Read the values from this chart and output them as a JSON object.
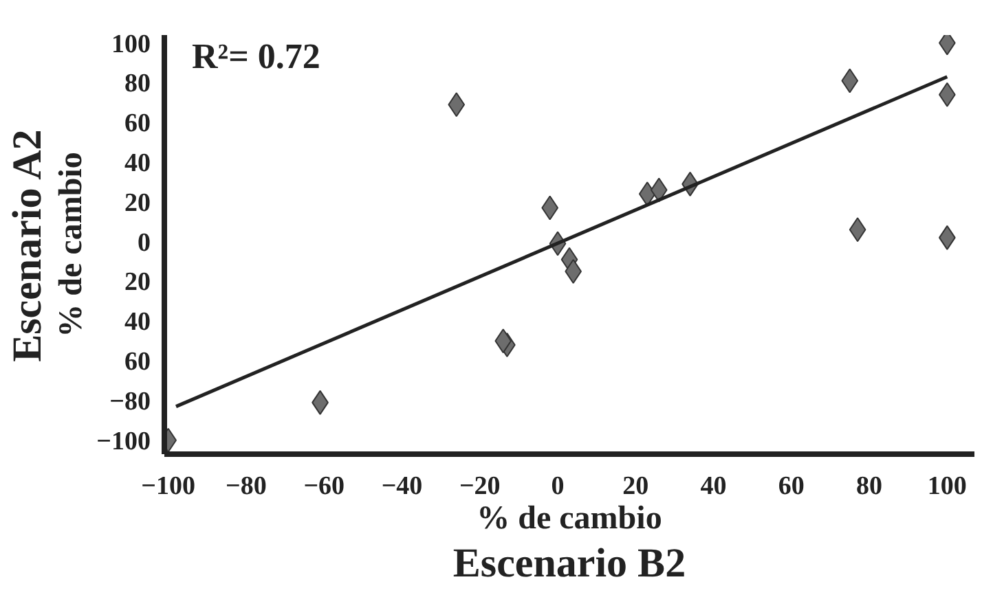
{
  "chart_data": {
    "type": "scatter",
    "xlabel": "% de cambio",
    "ylabel": "% de cambio",
    "annotations": [
      "R²= 0.72",
      "Escenario B2",
      "Escenario A2"
    ],
    "xlim": [
      -101,
      107
    ],
    "ylim": [
      -107,
      104
    ],
    "xticks": [
      -100,
      -80,
      -60,
      -40,
      -20,
      0,
      20,
      40,
      60,
      80,
      100
    ],
    "yticks": [
      -100,
      -80,
      {
        "value": -60,
        "label": "60"
      },
      {
        "value": -40,
        "label": "40"
      },
      {
        "value": -20,
        "label": "20"
      },
      0,
      20,
      40,
      60,
      80,
      100
    ],
    "grid": false,
    "series": [
      {
        "marker": "diamond",
        "color": "#6d6d6d",
        "x": [
          -100,
          -61,
          -26,
          -2,
          0,
          3,
          4,
          23,
          26,
          34,
          -13,
          -14,
          75,
          100,
          100,
          77,
          100
        ],
        "values": [
          -100,
          -81,
          69,
          17,
          -1,
          -9,
          -15,
          24,
          26,
          29,
          -52,
          -50,
          81,
          100,
          74,
          6,
          2
        ]
      },
      {
        "type": "line",
        "color": "#222222",
        "x": [
          -98,
          100
        ],
        "values": [
          -83,
          83
        ]
      }
    ]
  }
}
